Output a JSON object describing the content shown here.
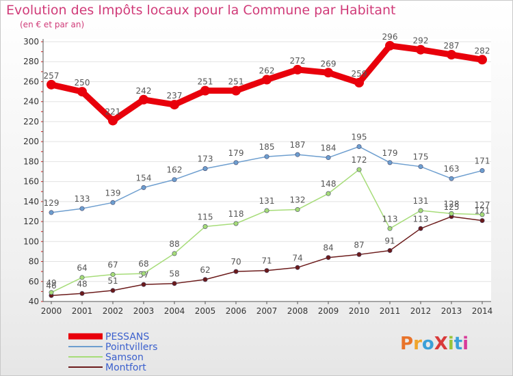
{
  "title": "Evolution des Impôts locaux pour la Commune par Habitant",
  "subtitle": "(en € et par an)",
  "logo": {
    "text": "ProXiti",
    "colors": [
      "#e8732a",
      "#f0a52a",
      "#3aa0d8",
      "#d83a3a",
      "#9ac43a",
      "#3aa0d8",
      "#d83a9a"
    ]
  },
  "chart_data": {
    "type": "line",
    "x": [
      2000,
      2001,
      2002,
      2003,
      2004,
      2005,
      2006,
      2007,
      2008,
      2009,
      2010,
      2011,
      2012,
      2013,
      2014
    ],
    "ylim": [
      40,
      300
    ],
    "yticks": [
      40,
      60,
      80,
      100,
      120,
      140,
      160,
      180,
      200,
      220,
      240,
      260,
      280,
      300
    ],
    "legend_position": "bottom-left",
    "series": [
      {
        "name": "PESSANS",
        "color": "#e8000b",
        "values": [
          257,
          250,
          221,
          242,
          237,
          251,
          251,
          262,
          272,
          269,
          259,
          296,
          292,
          287,
          282
        ]
      },
      {
        "name": "Pointvillers",
        "color": "#6d9ecf",
        "values": [
          129,
          133,
          139,
          154,
          162,
          173,
          179,
          185,
          187,
          184,
          195,
          179,
          175,
          163,
          171
        ]
      },
      {
        "name": "Samson",
        "color": "#a6dc78",
        "values": [
          49,
          64,
          67,
          68,
          88,
          115,
          118,
          131,
          132,
          148,
          172,
          113,
          131,
          128,
          127
        ]
      },
      {
        "name": "Montfort",
        "color": "#6b1a1a",
        "values": [
          46,
          48,
          51,
          57,
          58,
          62,
          70,
          71,
          74,
          84,
          87,
          91,
          113,
          125,
          121
        ]
      }
    ]
  }
}
